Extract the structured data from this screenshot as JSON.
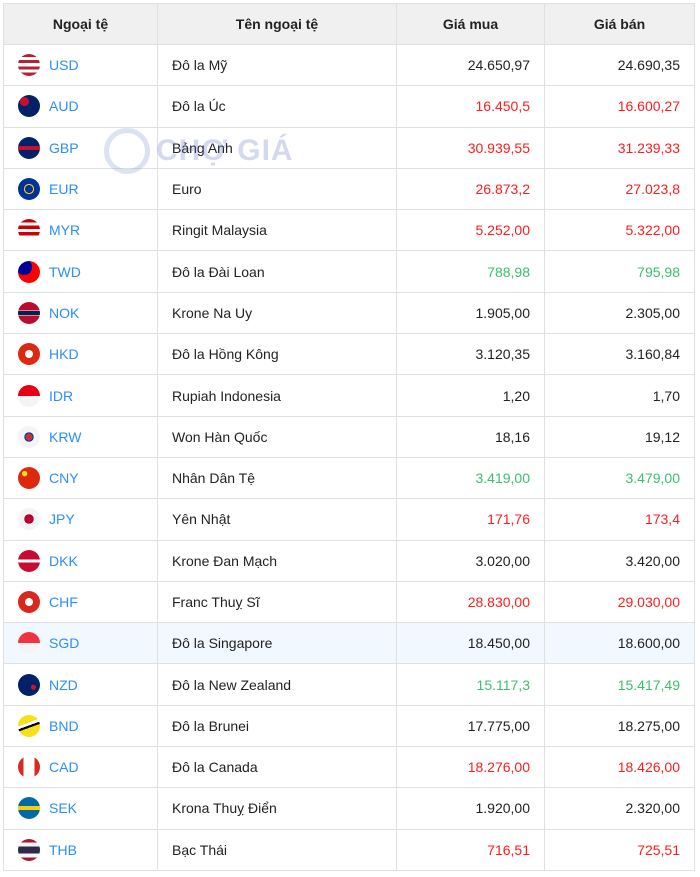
{
  "header": {
    "code": "Ngoại tệ",
    "name": "Tên ngoại tệ",
    "buy": "Giá mua",
    "sell": "Giá bán"
  },
  "watermark": "CHỢ GIÁ",
  "colors": {
    "up": "#3bbf6d",
    "down": "#ff1c1c",
    "same": "#222222",
    "code": "#2a8ff7",
    "highlight": "#f2f8ff"
  },
  "rows": [
    {
      "code": "USD",
      "name": "Đô la Mỹ",
      "buy": "24.650,97",
      "sell": "24.690,35",
      "trend": "same",
      "flag": "linear-gradient(#b22234 0 14%,#fff 14% 28%,#b22234 28% 42%,#fff 42% 56%,#b22234 56% 70%,#fff 70% 84%,#b22234 84%)"
    },
    {
      "code": "AUD",
      "name": "Đô la Úc",
      "buy": "16.450,5",
      "sell": "16.600,27",
      "trend": "down",
      "flag": "radial-gradient(circle at 30% 30%,#c8102e 0 20%,#012169 21%)"
    },
    {
      "code": "GBP",
      "name": "Bảng Anh",
      "buy": "30.939,55",
      "sell": "31.239,33",
      "trend": "down",
      "flag": "linear-gradient(#012169 0 40%,#c8102e 40% 60%,#012169 60%)"
    },
    {
      "code": "EUR",
      "name": "Euro",
      "buy": "26.873,2",
      "sell": "27.023,8",
      "trend": "down",
      "flag": "radial-gradient(circle,#003399 0 25%,#ffcc00 26% 32%,#003399 33%)"
    },
    {
      "code": "MYR",
      "name": "Ringit Malaysia",
      "buy": "5.252,00",
      "sell": "5.322,00",
      "trend": "down",
      "flag": "linear-gradient(#cc0001 0 15%,#fff 15% 30%,#cc0001 30% 45%,#fff 45% 60%,#cc0001 60% 75%,#fff 75%)"
    },
    {
      "code": "TWD",
      "name": "Đô la Đài Loan",
      "buy": "788,98",
      "sell": "795,98",
      "trend": "up",
      "flag": "radial-gradient(circle at 28% 28%,#000095 0 35%,#fe0000 36%)"
    },
    {
      "code": "NOK",
      "name": "Krone Na Uy",
      "buy": "1.905,00",
      "sell": "2.305,00",
      "trend": "same",
      "flag": "linear-gradient(#ba0c2f 0 38%,#fff 38% 42%,#00205b 42% 58%,#fff 58% 62%,#ba0c2f 62%)"
    },
    {
      "code": "HKD",
      "name": "Đô la Hồng Kông",
      "buy": "3.120,35",
      "sell": "3.160,84",
      "trend": "same",
      "flag": "radial-gradient(circle,#fff 0 25%,#de2910 26%)"
    },
    {
      "code": "IDR",
      "name": "Rupiah Indonesia",
      "buy": "1,20",
      "sell": "1,70",
      "trend": "same",
      "flag": "linear-gradient(#e70011 0 50%,#f4f4f4 50%)"
    },
    {
      "code": "KRW",
      "name": "Won Hàn Quốc",
      "buy": "18,16",
      "sell": "19,12",
      "trend": "same",
      "flag": "radial-gradient(circle,#cd2e3a 0 22%,#0047a0 23% 30%,#f4f4f4 31%)"
    },
    {
      "code": "CNY",
      "name": "Nhân Dân Tệ",
      "buy": "3.419,00",
      "sell": "3.479,00",
      "trend": "up",
      "flag": "radial-gradient(circle at 30% 30%,#ffde00 0 12%,#de2910 13%)"
    },
    {
      "code": "JPY",
      "name": "Yên Nhật",
      "buy": "171,76",
      "sell": "173,4",
      "trend": "down",
      "flag": "radial-gradient(circle,#bc002d 0 30%,#f4f4f4 31%)"
    },
    {
      "code": "DKK",
      "name": "Krone Đan Mạch",
      "buy": "3.020,00",
      "sell": "3.420,00",
      "trend": "same",
      "flag": "linear-gradient(#c60c30 0 43%,#fff 43% 57%,#c60c30 57%)"
    },
    {
      "code": "CHF",
      "name": "Franc Thuỵ Sĩ",
      "buy": "28.830,00",
      "sell": "29.030,00",
      "trend": "down",
      "flag": "radial-gradient(circle,#fff 0 25%,#da291c 26%)"
    },
    {
      "code": "SGD",
      "name": "Đô la Singapore",
      "buy": "18.450,00",
      "sell": "18.600,00",
      "trend": "same",
      "highlight": true,
      "flag": "linear-gradient(#ef3340 0 50%,#f4f4f4 50%)"
    },
    {
      "code": "NZD",
      "name": "Đô la New Zealand",
      "buy": "15.117,3",
      "sell": "15.417,49",
      "trend": "up",
      "flag": "radial-gradient(circle at 70% 60%,#cc142b 0 12%,#012169 13%)"
    },
    {
      "code": "BND",
      "name": "Đô la Brunei",
      "buy": "17.775,00",
      "sell": "18.275,00",
      "trend": "same",
      "flag": "linear-gradient(160deg,#f7e017 0 38%,#fff 38% 48%,#000 48% 56%,#f7e017 56%)"
    },
    {
      "code": "CAD",
      "name": "Đô la Canada",
      "buy": "18.276,00",
      "sell": "18.426,00",
      "trend": "down",
      "flag": "linear-gradient(90deg,#d52b1e 0 25%,#fff 25% 75%,#d52b1e 75%)"
    },
    {
      "code": "SEK",
      "name": "Krona Thuỵ Điển",
      "buy": "1.920,00",
      "sell": "2.320,00",
      "trend": "same",
      "flag": "linear-gradient(#006aa7 0 42%,#fecc00 42% 58%,#006aa7 58%)"
    },
    {
      "code": "THB",
      "name": "Bạc Thái",
      "buy": "716,51",
      "sell": "725,51",
      "trend": "down",
      "flag": "linear-gradient(#a51931 0 17%,#f4f5f8 17% 33%,#2d2a4a 33% 67%,#f4f5f8 67% 83%,#a51931 83%)"
    }
  ]
}
